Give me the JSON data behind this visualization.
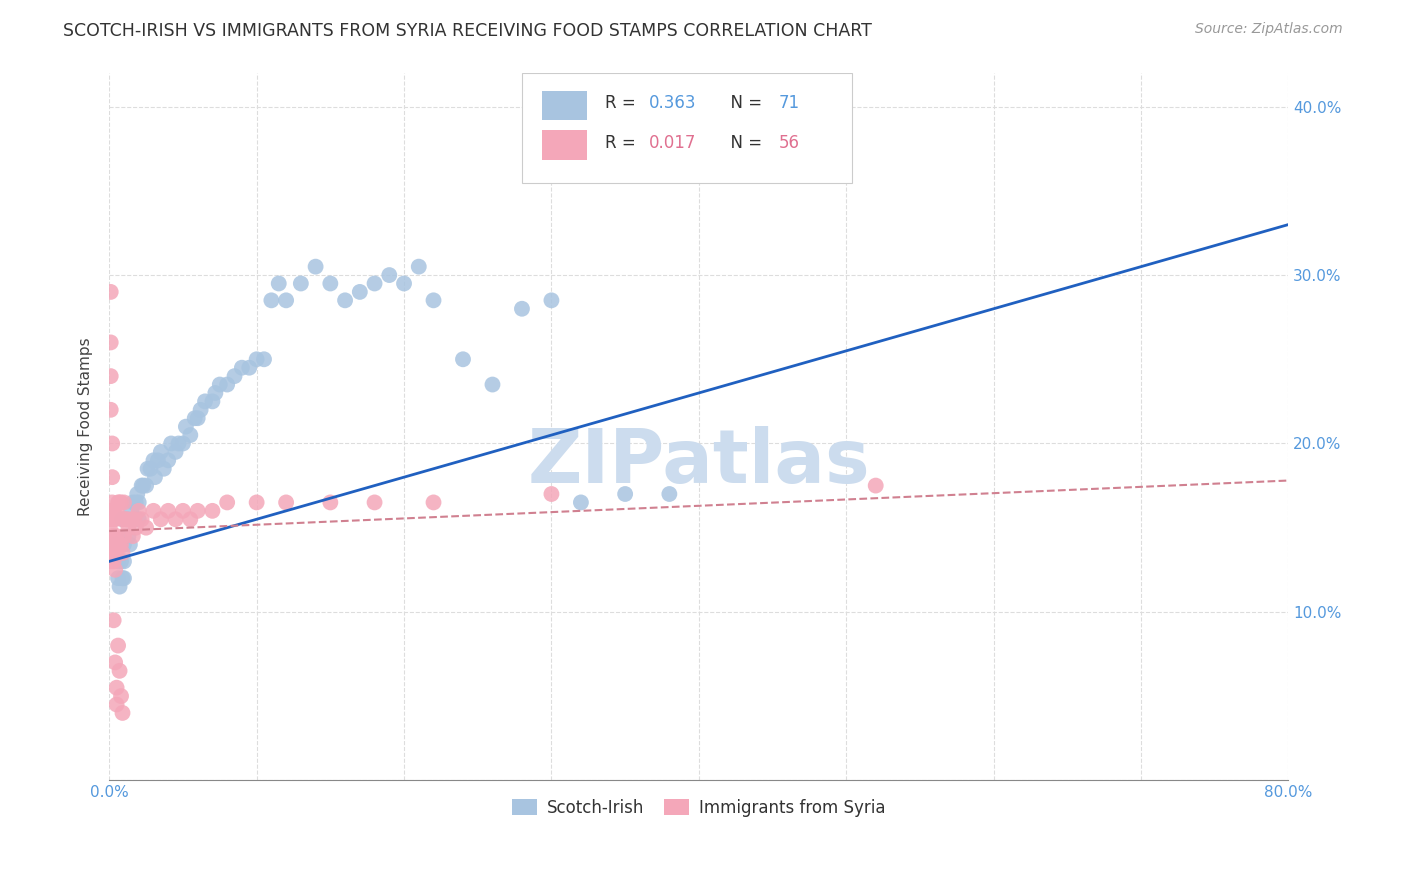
{
  "title": "SCOTCH-IRISH VS IMMIGRANTS FROM SYRIA RECEIVING FOOD STAMPS CORRELATION CHART",
  "source": "Source: ZipAtlas.com",
  "ylabel": "Receiving Food Stamps",
  "xlim": [
    0.0,
    0.8
  ],
  "ylim": [
    0.0,
    0.42
  ],
  "blue_color": "#a8c4e0",
  "pink_color": "#f4a7b9",
  "blue_line_color": "#2060c0",
  "pink_line_color": "#d08090",
  "watermark_color": "#ccdcee",
  "background_color": "#ffffff",
  "grid_color": "#dddddd",
  "tick_color": "#5599dd",
  "blue_line_start_y": 0.13,
  "blue_line_end_y": 0.33,
  "pink_line_start_y": 0.148,
  "pink_line_end_y": 0.178,
  "legend_r1": "0.363",
  "legend_n1": "71",
  "legend_r2": "0.017",
  "legend_n2": "56",
  "scotch_irish_x": [
    0.005,
    0.006,
    0.006,
    0.007,
    0.008,
    0.009,
    0.009,
    0.01,
    0.01,
    0.01,
    0.012,
    0.013,
    0.014,
    0.015,
    0.016,
    0.017,
    0.018,
    0.019,
    0.02,
    0.02,
    0.022,
    0.023,
    0.025,
    0.026,
    0.028,
    0.03,
    0.031,
    0.033,
    0.035,
    0.037,
    0.04,
    0.042,
    0.045,
    0.047,
    0.05,
    0.052,
    0.055,
    0.058,
    0.06,
    0.062,
    0.065,
    0.07,
    0.072,
    0.075,
    0.08,
    0.085,
    0.09,
    0.095,
    0.1,
    0.105,
    0.11,
    0.115,
    0.12,
    0.13,
    0.14,
    0.15,
    0.16,
    0.17,
    0.18,
    0.19,
    0.2,
    0.21,
    0.22,
    0.24,
    0.26,
    0.28,
    0.3,
    0.32,
    0.35,
    0.38,
    0.42
  ],
  "scotch_irish_y": [
    0.14,
    0.13,
    0.12,
    0.115,
    0.13,
    0.12,
    0.155,
    0.14,
    0.13,
    0.12,
    0.155,
    0.145,
    0.14,
    0.16,
    0.165,
    0.155,
    0.165,
    0.17,
    0.165,
    0.155,
    0.175,
    0.175,
    0.175,
    0.185,
    0.185,
    0.19,
    0.18,
    0.19,
    0.195,
    0.185,
    0.19,
    0.2,
    0.195,
    0.2,
    0.2,
    0.21,
    0.205,
    0.215,
    0.215,
    0.22,
    0.225,
    0.225,
    0.23,
    0.235,
    0.235,
    0.24,
    0.245,
    0.245,
    0.25,
    0.25,
    0.285,
    0.295,
    0.285,
    0.295,
    0.305,
    0.295,
    0.285,
    0.29,
    0.295,
    0.3,
    0.295,
    0.305,
    0.285,
    0.25,
    0.235,
    0.28,
    0.285,
    0.165,
    0.17,
    0.17,
    0.395
  ],
  "syria_x": [
    0.001,
    0.001,
    0.001,
    0.001,
    0.001,
    0.002,
    0.002,
    0.002,
    0.002,
    0.002,
    0.003,
    0.003,
    0.003,
    0.003,
    0.004,
    0.004,
    0.004,
    0.005,
    0.005,
    0.005,
    0.006,
    0.006,
    0.007,
    0.007,
    0.008,
    0.008,
    0.009,
    0.009,
    0.01,
    0.01,
    0.011,
    0.012,
    0.013,
    0.015,
    0.016,
    0.017,
    0.018,
    0.02,
    0.022,
    0.025,
    0.03,
    0.035,
    0.04,
    0.045,
    0.05,
    0.055,
    0.06,
    0.07,
    0.08,
    0.1,
    0.12,
    0.15,
    0.18,
    0.22,
    0.3,
    0.52
  ],
  "syria_y": [
    0.155,
    0.148,
    0.14,
    0.13,
    0.16,
    0.155,
    0.145,
    0.135,
    0.165,
    0.14,
    0.155,
    0.145,
    0.16,
    0.13,
    0.155,
    0.14,
    0.125,
    0.16,
    0.145,
    0.135,
    0.165,
    0.14,
    0.165,
    0.14,
    0.165,
    0.14,
    0.155,
    0.135,
    0.165,
    0.145,
    0.155,
    0.155,
    0.15,
    0.155,
    0.145,
    0.155,
    0.15,
    0.16,
    0.155,
    0.15,
    0.16,
    0.155,
    0.16,
    0.155,
    0.16,
    0.155,
    0.16,
    0.16,
    0.165,
    0.165,
    0.165,
    0.165,
    0.165,
    0.165,
    0.17,
    0.175
  ],
  "extra_pink_low_y": [
    0.29,
    0.26,
    0.24,
    0.22,
    0.2,
    0.18,
    0.095,
    0.07,
    0.055,
    0.045,
    0.08,
    0.065,
    0.05,
    0.04
  ],
  "extra_pink_low_x": [
    0.001,
    0.001,
    0.001,
    0.001,
    0.002,
    0.002,
    0.003,
    0.004,
    0.005,
    0.005,
    0.006,
    0.007,
    0.008,
    0.009
  ]
}
